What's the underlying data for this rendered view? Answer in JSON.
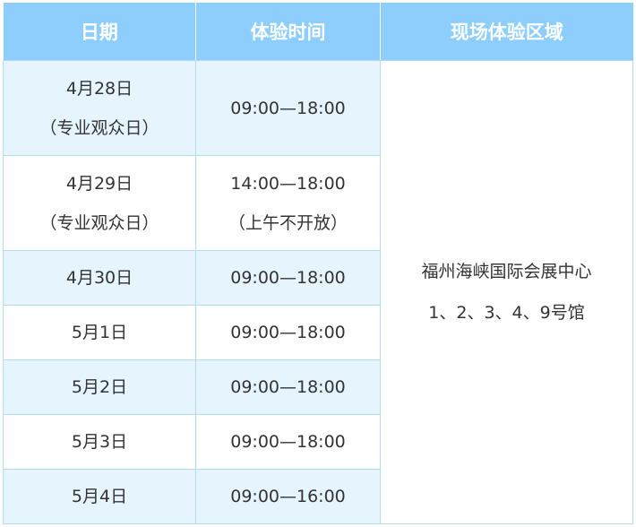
{
  "headers": [
    "日期",
    "体验时间",
    "现场体验区域"
  ],
  "rows": [
    {
      "date": [
        "4月28日",
        "（专业观众日）"
      ],
      "time": [
        "09:00—18:00"
      ]
    },
    {
      "date": [
        "4月29日",
        "（专业观众日）"
      ],
      "time": [
        "14:00—18:00",
        "（上午不开放）"
      ]
    },
    {
      "date": [
        "4月30日"
      ],
      "time": [
        "09:00—18:00"
      ]
    },
    {
      "date": [
        "5月1日"
      ],
      "time": [
        "09:00—18:00"
      ]
    },
    {
      "date": [
        "5月2日"
      ],
      "time": [
        "09:00—18:00"
      ]
    },
    {
      "date": [
        "5月3日"
      ],
      "time": [
        "09:00—18:00"
      ]
    },
    {
      "date": [
        "5月4日"
      ],
      "time": [
        "09:00—16:00"
      ]
    }
  ],
  "area": [
    "福州海峡国际会展中心",
    "1、2、3、4、9号馆"
  ],
  "colors": {
    "header_bg": "#8ecefd",
    "row_light": "#e6f4fe",
    "border": "#b5dcf5"
  }
}
